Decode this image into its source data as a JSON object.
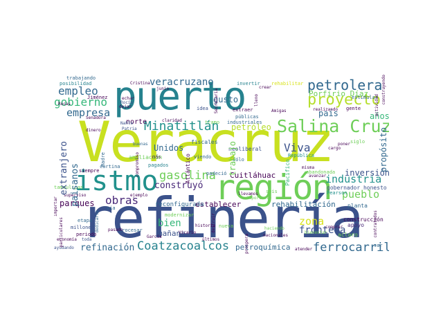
{
  "palette": {
    "navy": "#3b528b",
    "blue": "#31688e",
    "teal": "#21918c",
    "aqua": "#26828e",
    "green": "#35b779",
    "lime": "#6ece58",
    "yellowgreen": "#b5de2b",
    "yellow": "#d8e219",
    "purple": "#482878",
    "dark": "#440154"
  },
  "words": {
    "veracruz": "Veracruz",
    "refineria": "refinería",
    "puerto": "puerto",
    "istmo": "istmo",
    "region": "región",
    "salina_cruz": "Salina Cruz",
    "proyecto": "proyecto",
    "petrolera": "petrolera",
    "minatitlan": "Minatitlán",
    "coatzacoalcos": "Coatzacoalcos",
    "refinacion": "refinación",
    "ferrocarril": "ferrocarril",
    "empleo": "empleo",
    "empresa": "empresa",
    "gobierno": "gobierno",
    "veracruzano": "veracruzano",
    "gasolina": "gasolina",
    "obras": "obras",
    "industria": "industria",
    "pueblo": "pueblo",
    "viva": "Viva",
    "zona": "zona",
    "frontera": "frontera",
    "inversion": "inversión",
    "construyo": "construyó",
    "cuitlahuac": "Cuitláhuac",
    "petroleo": "petróleo",
    "bien": "bien",
    "parques": "parques",
    "paisanos": "paisanos",
    "extranjero": "extranjero",
    "gusto": "gusto",
    "pais": "país",
    "anos": "años",
    "porfirio_diaz": "Porfirio Díaz",
    "trabajo": "trabajo",
    "establecer": "establecer",
    "rehabilitacion": "rehabilitación",
    "petroquimica": "petroquímica",
    "manana": "mañana",
    "norte": "norte",
    "unidos": "Unidos",
    "proposito": "propósito",
    "reconfigurada": "reconfigurada",
    "construccion": "construcción",
    "planta": "planta",
    "gobernador_honesto": "gobernador honesto",
    "tamaulipas": "tamaulipas",
    "atlantico": "Atlántico",
    "fiscales": "fiscales",
    "mas": "más",
    "ampliacion": "ampliación",
    "neoliberal": "neoliberal",
    "solo": "sólo",
    "viendo": "viendo",
    "pagados": "pagados",
    "padecio": "padeció",
    "siempre": "siempre",
    "cortina": "cortina",
    "apoyo": "apoyo",
    "aclaro": "aclaro",
    "etapa": "etapa",
    "millones": "millones",
    "periodo": "periodo",
    "procesar": "procesar",
    "modernizar": "modernizar",
    "vicario": "Vicario",
    "historia": "historia",
    "nueva": "nueva",
    "publicas": "públicas",
    "industriales": "industriales",
    "extraer": "extraer",
    "tramo": "tramo",
    "idea": "idea",
    "posibilidad": "posibilidad",
    "trabajando": "trabajando",
    "jimenez": "Jiménez",
    "dejar": "dejar",
    "rocio": "Rocío",
    "rehabilitar": "rehabilitar",
    "invertir": "invertir",
    "crear": "crear",
    "estimular": "estimular",
    "gente": "gente",
    "sur": "sur",
    "via": "vía",
    "toda": "toda",
    "garcia": "García",
    "pearson": "Pearson",
    "pacifico": "Pacífico",
    "republica": "República",
    "abandonada": "abandonada",
    "avanzar": "avanzar",
    "seis": "seis",
    "misma": "misma",
    "nacion": "nación",
    "siglo": "siglo",
    "cargo": "cargo",
    "poner": "poner",
    "actividad": "actividad",
    "construyendo": "construyendo",
    "realizando": "realizando",
    "amigas": "Amigas",
    "amigos": "Amigos",
    "importante": "importante",
    "madre": "Madre",
    "echar": "echar",
    "buenas": "buenas",
    "patria": "Patria",
    "dinero": "dinero",
    "nahle": "Nahle",
    "claridad": "claridad",
    "senadora": "Senadora",
    "rocas": "Rocas",
    "junio": "junio",
    "cristina": "Cristina",
    "presidente": "presidente",
    "economia": "economía",
    "superviso": "superviso",
    "ejemplo": "ejemplo",
    "compromiso": "compromiso",
    "decir": "decir",
    "dedicarse": "dedicarse",
    "poder": "poder",
    "importar": "importar",
    "particulares": "particulares",
    "ayudando": "ayudando",
    "pasado": "pasado",
    "prospera": "prospera",
    "gasto": "gasto",
    "ultimos": "últimos",
    "haciendo": "haciendo",
    "hace": "hace",
    "nacionales": "nacionales",
    "bienestar": "bienestar",
    "comprar": "comprar",
    "atender": "atender",
    "llevamos": "llevamos",
    "mexico": "México",
    "fuentes": "fuentes",
    "cambio": "cambio",
    "continuar": "continuar",
    "entrañables": "entrañables",
    "existen": "existen",
    "acabar": "acabar",
    "mundial": "mundial",
    "distintos": "distintos",
    "producir": "producir",
    "lleno": "lleno",
    "marca": "marca",
    "vecinos": "vecinos",
    "generar": "generar",
    "mismo": "mismo",
    "reactivar": "reactivar",
    "tierras": "tierras",
    "destruir": "destruir",
    "contratados": "contratados",
    "llegando": "llegando",
    "regiones": "regiones",
    "nacido": "nacido",
    "secretaria": "Secretaría",
    "recursos": "recursos",
    "ocupamos": "ocupamos",
    "ciudad": "ciudad",
    "florecio": "floreció",
    "oportunidades": "oportunidades",
    "desarrollo": "desarrollo",
    "corredor": "corredor",
    "paso": "paso",
    "energia": "energía",
    "exportar": "exportar",
    "rubros": "rubros",
    "altos": "altos",
    "prometido": "prometido",
    "segundo": "segundo",
    "gracias": "gracias",
    "querido": "querido",
    "tiempo": "tiempo",
    "puertos": "puertos",
    "norteamericanos": "norteamericanos",
    "zonas": "zonas",
    "carretera": "carretera",
    "campo": "campo",
    "agua": "agua",
    "plan": "plan",
    "obra": "obra",
    "gas": "gas",
    "lugar": "lugar",
    "jovenes": "jóvenes",
    "trabajadores": "trabajadores",
    "mexicanos": "mexicanos",
    "ano": "año"
  }
}
